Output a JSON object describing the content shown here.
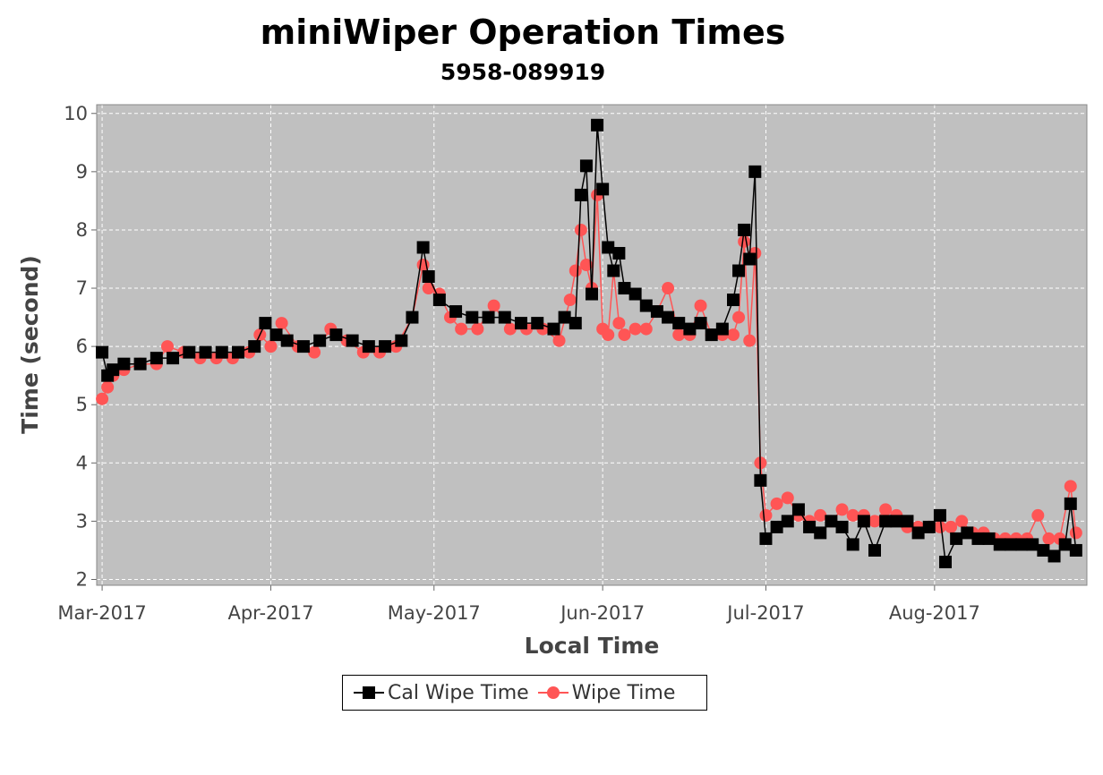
{
  "chart_data": {
    "type": "line",
    "title": "miniWiper Operation Times",
    "subtitle": "5958-089919",
    "xlabel": "Local Time",
    "ylabel": "Time (second)",
    "x_tick_labels": [
      "Mar-2017",
      "Apr-2017",
      "May-2017",
      "Jun-2017",
      "Jul-2017",
      "Aug-2017"
    ],
    "x_tick_dates": [
      "2017-03-01",
      "2017-04-01",
      "2017-05-01",
      "2017-06-01",
      "2017-07-01",
      "2017-08-01"
    ],
    "xlim": [
      "2017-02-28",
      "2017-08-29"
    ],
    "ylim": [
      1.9,
      10.15
    ],
    "y_ticks": [
      2,
      3,
      4,
      5,
      6,
      7,
      8,
      9,
      10
    ],
    "grid": true,
    "legend_position": "bottom-center",
    "background": "#c0c0c0",
    "series": [
      {
        "name": "Cal Wipe Time",
        "color": "#000000",
        "marker": "square",
        "points": [
          [
            "2017-03-01",
            5.9
          ],
          [
            "2017-03-02",
            5.5
          ],
          [
            "2017-03-03",
            5.6
          ],
          [
            "2017-03-05",
            5.7
          ],
          [
            "2017-03-08",
            5.7
          ],
          [
            "2017-03-11",
            5.8
          ],
          [
            "2017-03-14",
            5.8
          ],
          [
            "2017-03-17",
            5.9
          ],
          [
            "2017-03-20",
            5.9
          ],
          [
            "2017-03-23",
            5.9
          ],
          [
            "2017-03-26",
            5.9
          ],
          [
            "2017-03-29",
            6.0
          ],
          [
            "2017-03-31",
            6.4
          ],
          [
            "2017-04-02",
            6.2
          ],
          [
            "2017-04-04",
            6.1
          ],
          [
            "2017-04-07",
            6.0
          ],
          [
            "2017-04-10",
            6.1
          ],
          [
            "2017-04-13",
            6.2
          ],
          [
            "2017-04-16",
            6.1
          ],
          [
            "2017-04-19",
            6.0
          ],
          [
            "2017-04-22",
            6.0
          ],
          [
            "2017-04-25",
            6.1
          ],
          [
            "2017-04-27",
            6.5
          ],
          [
            "2017-04-29",
            7.7
          ],
          [
            "2017-04-30",
            7.2
          ],
          [
            "2017-05-02",
            6.8
          ],
          [
            "2017-05-05",
            6.6
          ],
          [
            "2017-05-08",
            6.5
          ],
          [
            "2017-05-11",
            6.5
          ],
          [
            "2017-05-14",
            6.5
          ],
          [
            "2017-05-17",
            6.4
          ],
          [
            "2017-05-20",
            6.4
          ],
          [
            "2017-05-23",
            6.3
          ],
          [
            "2017-05-25",
            6.5
          ],
          [
            "2017-05-27",
            6.4
          ],
          [
            "2017-05-28",
            8.6
          ],
          [
            "2017-05-29",
            9.1
          ],
          [
            "2017-05-30",
            6.9
          ],
          [
            "2017-05-31",
            9.8
          ],
          [
            "2017-06-01",
            8.7
          ],
          [
            "2017-06-02",
            7.7
          ],
          [
            "2017-06-03",
            7.3
          ],
          [
            "2017-06-04",
            7.6
          ],
          [
            "2017-06-05",
            7.0
          ],
          [
            "2017-06-07",
            6.9
          ],
          [
            "2017-06-09",
            6.7
          ],
          [
            "2017-06-11",
            6.6
          ],
          [
            "2017-06-13",
            6.5
          ],
          [
            "2017-06-15",
            6.4
          ],
          [
            "2017-06-17",
            6.3
          ],
          [
            "2017-06-19",
            6.4
          ],
          [
            "2017-06-21",
            6.2
          ],
          [
            "2017-06-23",
            6.3
          ],
          [
            "2017-06-25",
            6.8
          ],
          [
            "2017-06-26",
            7.3
          ],
          [
            "2017-06-27",
            8.0
          ],
          [
            "2017-06-28",
            7.5
          ],
          [
            "2017-06-29",
            9.0
          ],
          [
            "2017-06-30",
            3.7
          ],
          [
            "2017-07-01",
            2.7
          ],
          [
            "2017-07-03",
            2.9
          ],
          [
            "2017-07-05",
            3.0
          ],
          [
            "2017-07-07",
            3.2
          ],
          [
            "2017-07-09",
            2.9
          ],
          [
            "2017-07-11",
            2.8
          ],
          [
            "2017-07-13",
            3.0
          ],
          [
            "2017-07-15",
            2.9
          ],
          [
            "2017-07-17",
            2.6
          ],
          [
            "2017-07-19",
            3.0
          ],
          [
            "2017-07-21",
            2.5
          ],
          [
            "2017-07-23",
            3.0
          ],
          [
            "2017-07-25",
            3.0
          ],
          [
            "2017-07-27",
            3.0
          ],
          [
            "2017-07-29",
            2.8
          ],
          [
            "2017-07-31",
            2.9
          ],
          [
            "2017-08-02",
            3.1
          ],
          [
            "2017-08-03",
            2.3
          ],
          [
            "2017-08-05",
            2.7
          ],
          [
            "2017-08-07",
            2.8
          ],
          [
            "2017-08-09",
            2.7
          ],
          [
            "2017-08-11",
            2.7
          ],
          [
            "2017-08-13",
            2.6
          ],
          [
            "2017-08-15",
            2.6
          ],
          [
            "2017-08-17",
            2.6
          ],
          [
            "2017-08-19",
            2.6
          ],
          [
            "2017-08-21",
            2.5
          ],
          [
            "2017-08-23",
            2.4
          ],
          [
            "2017-08-25",
            2.6
          ],
          [
            "2017-08-26",
            3.3
          ],
          [
            "2017-08-27",
            2.5
          ]
        ]
      },
      {
        "name": "Wipe Time",
        "color": "#ff5555",
        "marker": "circle",
        "points": [
          [
            "2017-03-01",
            5.1
          ],
          [
            "2017-03-02",
            5.3
          ],
          [
            "2017-03-03",
            5.5
          ],
          [
            "2017-03-05",
            5.6
          ],
          [
            "2017-03-08",
            5.7
          ],
          [
            "2017-03-11",
            5.7
          ],
          [
            "2017-03-13",
            6.0
          ],
          [
            "2017-03-16",
            5.9
          ],
          [
            "2017-03-19",
            5.8
          ],
          [
            "2017-03-22",
            5.8
          ],
          [
            "2017-03-25",
            5.8
          ],
          [
            "2017-03-28",
            5.9
          ],
          [
            "2017-03-30",
            6.2
          ],
          [
            "2017-04-01",
            6.0
          ],
          [
            "2017-04-03",
            6.4
          ],
          [
            "2017-04-06",
            6.0
          ],
          [
            "2017-04-09",
            5.9
          ],
          [
            "2017-04-12",
            6.3
          ],
          [
            "2017-04-15",
            6.1
          ],
          [
            "2017-04-18",
            5.9
          ],
          [
            "2017-04-21",
            5.9
          ],
          [
            "2017-04-24",
            6.0
          ],
          [
            "2017-04-27",
            6.5
          ],
          [
            "2017-04-29",
            7.4
          ],
          [
            "2017-04-30",
            7.0
          ],
          [
            "2017-05-02",
            6.9
          ],
          [
            "2017-05-04",
            6.5
          ],
          [
            "2017-05-06",
            6.3
          ],
          [
            "2017-05-09",
            6.3
          ],
          [
            "2017-05-12",
            6.7
          ],
          [
            "2017-05-15",
            6.3
          ],
          [
            "2017-05-18",
            6.3
          ],
          [
            "2017-05-21",
            6.3
          ],
          [
            "2017-05-24",
            6.1
          ],
          [
            "2017-05-26",
            6.8
          ],
          [
            "2017-05-27",
            7.3
          ],
          [
            "2017-05-28",
            8.0
          ],
          [
            "2017-05-29",
            7.4
          ],
          [
            "2017-05-30",
            7.0
          ],
          [
            "2017-05-31",
            8.6
          ],
          [
            "2017-06-01",
            6.3
          ],
          [
            "2017-06-02",
            6.2
          ],
          [
            "2017-06-03",
            7.3
          ],
          [
            "2017-06-04",
            6.4
          ],
          [
            "2017-06-05",
            6.2
          ],
          [
            "2017-06-07",
            6.3
          ],
          [
            "2017-06-09",
            6.3
          ],
          [
            "2017-06-11",
            6.6
          ],
          [
            "2017-06-13",
            7.0
          ],
          [
            "2017-06-15",
            6.2
          ],
          [
            "2017-06-17",
            6.2
          ],
          [
            "2017-06-19",
            6.7
          ],
          [
            "2017-06-21",
            6.2
          ],
          [
            "2017-06-23",
            6.2
          ],
          [
            "2017-06-25",
            6.2
          ],
          [
            "2017-06-26",
            6.5
          ],
          [
            "2017-06-27",
            7.8
          ],
          [
            "2017-06-28",
            6.1
          ],
          [
            "2017-06-29",
            7.6
          ],
          [
            "2017-06-30",
            4.0
          ],
          [
            "2017-07-01",
            3.1
          ],
          [
            "2017-07-03",
            3.3
          ],
          [
            "2017-07-05",
            3.4
          ],
          [
            "2017-07-07",
            3.1
          ],
          [
            "2017-07-09",
            3.0
          ],
          [
            "2017-07-11",
            3.1
          ],
          [
            "2017-07-13",
            3.0
          ],
          [
            "2017-07-15",
            3.2
          ],
          [
            "2017-07-17",
            3.1
          ],
          [
            "2017-07-19",
            3.1
          ],
          [
            "2017-07-21",
            3.0
          ],
          [
            "2017-07-23",
            3.2
          ],
          [
            "2017-07-25",
            3.1
          ],
          [
            "2017-07-27",
            2.9
          ],
          [
            "2017-07-29",
            2.9
          ],
          [
            "2017-07-31",
            2.9
          ],
          [
            "2017-08-02",
            2.9
          ],
          [
            "2017-08-04",
            2.9
          ],
          [
            "2017-08-06",
            3.0
          ],
          [
            "2017-08-08",
            2.8
          ],
          [
            "2017-08-10",
            2.8
          ],
          [
            "2017-08-12",
            2.7
          ],
          [
            "2017-08-14",
            2.7
          ],
          [
            "2017-08-16",
            2.7
          ],
          [
            "2017-08-18",
            2.7
          ],
          [
            "2017-08-20",
            3.1
          ],
          [
            "2017-08-22",
            2.7
          ],
          [
            "2017-08-24",
            2.7
          ],
          [
            "2017-08-26",
            3.6
          ],
          [
            "2017-08-27",
            2.8
          ]
        ]
      }
    ]
  }
}
